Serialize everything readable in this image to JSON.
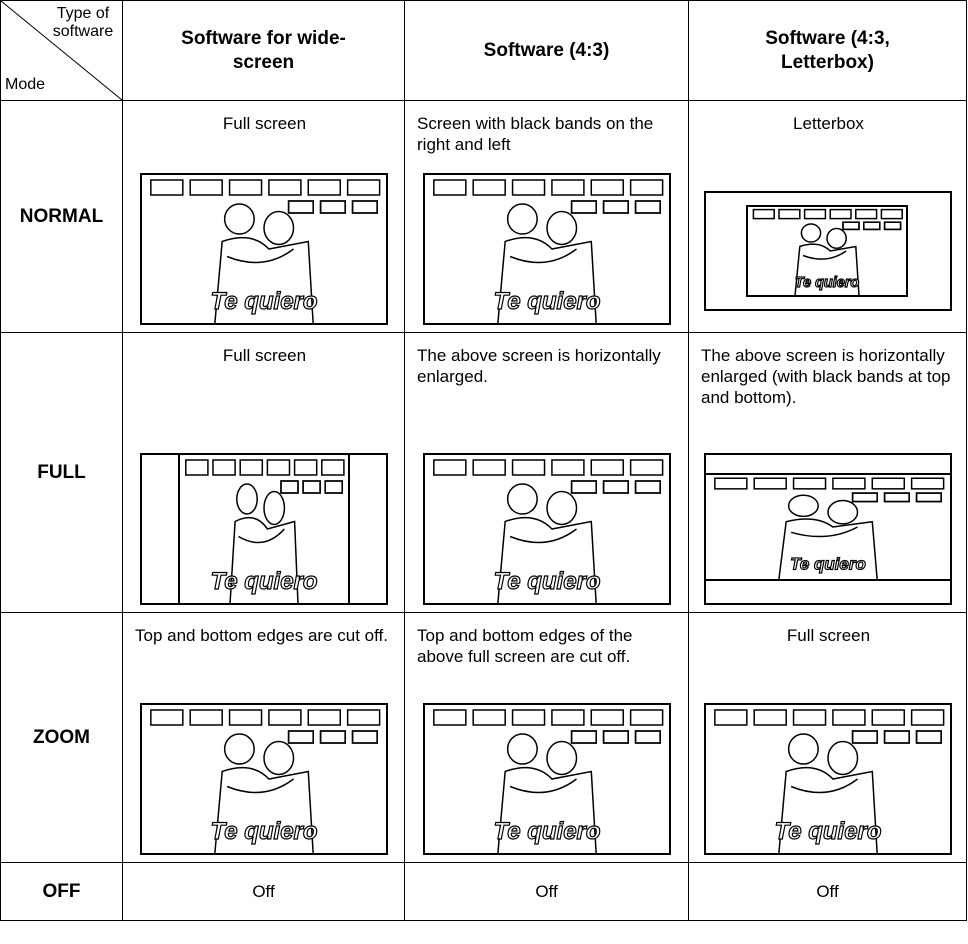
{
  "header": {
    "corner_top": "Type of software",
    "corner_bottom": "Mode",
    "columns": [
      "Software for wide-screen",
      "Software (4:3)",
      "Software (4:3, Letterbox)"
    ]
  },
  "rows": [
    {
      "mode": "NORMAL",
      "cells": [
        "Full screen",
        "Screen with black bands on the right and left",
        "Letterbox"
      ]
    },
    {
      "mode": "FULL",
      "cells": [
        "Full screen",
        "The above screen is horizontally enlarged.",
        "The above screen is horizontally enlarged (with black bands at top and bottom)."
      ]
    },
    {
      "mode": "ZOOM",
      "cells": [
        "Top and bottom edges are cut off.",
        "Top and bottom edges of the above full screen are cut off.",
        "Full screen"
      ]
    },
    {
      "mode": "OFF",
      "cells": [
        "Off",
        "Off",
        "Off"
      ]
    }
  ],
  "illustration_text": "Te quiero"
}
